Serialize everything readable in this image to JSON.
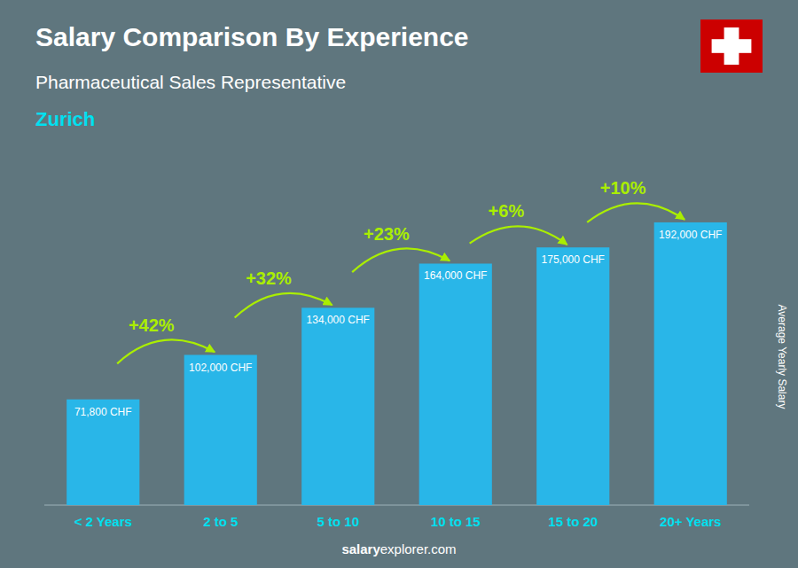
{
  "chart_data": {
    "type": "bar",
    "title": "Salary Comparison By Experience",
    "subtitle": "Pharmaceutical Sales Representative",
    "city": "Zurich",
    "ylabel": "Average Yearly Salary",
    "watermark": [
      "salary",
      "explorer.com"
    ],
    "categories": [
      "< 2 Years",
      "2 to 5",
      "5 to 10",
      "10 to 15",
      "15 to 20",
      "20+ Years"
    ],
    "values": [
      71800,
      102000,
      134000,
      164000,
      175000,
      192000
    ],
    "value_labels": [
      "71,800 CHF",
      "102,000 CHF",
      "134,000 CHF",
      "164,000 CHF",
      "175,000 CHF",
      "192,000 CHF"
    ],
    "data_labels": true,
    "annotations": [
      "+42%",
      "+32%",
      "+23%",
      "+6%",
      "+10%"
    ],
    "color": "#29b6e8",
    "ylim": [
      0,
      201600
    ],
    "tick_labels": "x",
    "grid": false
  }
}
